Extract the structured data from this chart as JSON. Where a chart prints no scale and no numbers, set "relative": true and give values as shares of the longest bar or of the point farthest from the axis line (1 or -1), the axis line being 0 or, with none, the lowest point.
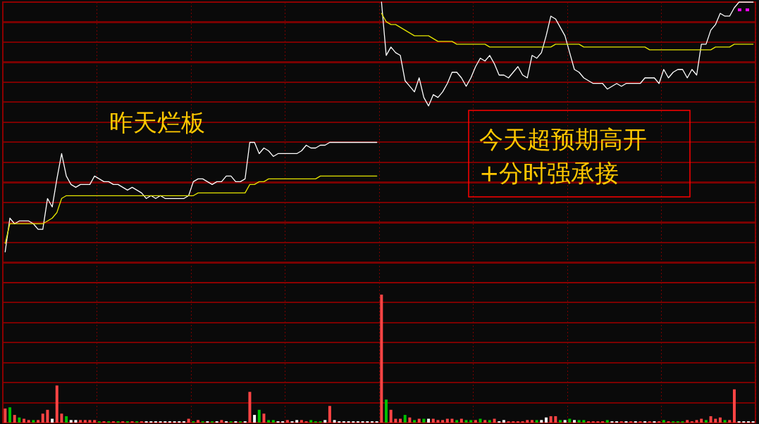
{
  "chart_data": [
    {
      "type": "line",
      "relative": true,
      "grid": true,
      "tick_labels": false,
      "categories": [
        null,
        null,
        null,
        null,
        null,
        null,
        null,
        null,
        null,
        null,
        null,
        null,
        null,
        null,
        null,
        null,
        null,
        null,
        null,
        null,
        null,
        null,
        null,
        null,
        null,
        null,
        null,
        null,
        null,
        null,
        null,
        null,
        null,
        null,
        null,
        null,
        null,
        null,
        null,
        null,
        null,
        null,
        null,
        null,
        null,
        null,
        null,
        null,
        null,
        null,
        null,
        null,
        null,
        null,
        null,
        null,
        null,
        null,
        null,
        null,
        null,
        null,
        null,
        null,
        null,
        null,
        null,
        null,
        null,
        null,
        null,
        null,
        null,
        null,
        null,
        null,
        null,
        null,
        null,
        null,
        null,
        null,
        null,
        null,
        null,
        null,
        null,
        null,
        null,
        null,
        null,
        null,
        null,
        null,
        null,
        null,
        null,
        null,
        null,
        null,
        null,
        null,
        null,
        null,
        null,
        null,
        null,
        null,
        null,
        null,
        null,
        null,
        null,
        null,
        null,
        null,
        null,
        null,
        null,
        null,
        null,
        null,
        null,
        null,
        null,
        null,
        null,
        null,
        null,
        null,
        null,
        null,
        null,
        null,
        null,
        null,
        null,
        null,
        null,
        null,
        null,
        null,
        null,
        null,
        null,
        null,
        null,
        null,
        null,
        null,
        null,
        null,
        null,
        null,
        null,
        null,
        null,
        null,
        null,
        null
      ],
      "series": [
        {
          "color": "#ffffff",
          "values": [
            0.11,
            0.23,
            0.21,
            0.22,
            0.22,
            0.22,
            0.21,
            0.19,
            0.19,
            0.3,
            0.27,
            0.37,
            0.46,
            0.38,
            0.35,
            0.34,
            0.35,
            0.35,
            0.35,
            0.38,
            0.37,
            0.36,
            0.36,
            0.35,
            0.35,
            0.34,
            0.33,
            0.34,
            0.33,
            0.32,
            0.3,
            0.31,
            0.3,
            0.31,
            0.3,
            0.3,
            0.3,
            0.3,
            0.3,
            0.31,
            0.36,
            0.37,
            0.37,
            0.36,
            0.35,
            0.36,
            0.36,
            0.38,
            0.38,
            0.36,
            0.36,
            0.37,
            0.5,
            0.5,
            0.46,
            0.48,
            0.47,
            0.45,
            0.46,
            0.46,
            0.46,
            0.46,
            0.46,
            0.47,
            0.49,
            0.48,
            0.48,
            0.49,
            0.49,
            0.5,
            0.5,
            0.5,
            0.5,
            0.5,
            0.5,
            0.5,
            0.5,
            0.5,
            0.5,
            0.5,
            null,
            null,
            null,
            null,
            null,
            null,
            null,
            null,
            null,
            null,
            null,
            null,
            null,
            null,
            null,
            null,
            null,
            null,
            null,
            null,
            null,
            null,
            null,
            null,
            null,
            null,
            null,
            null,
            null,
            null,
            null,
            null,
            null,
            null,
            null,
            null,
            null,
            null,
            null,
            null,
            null,
            null,
            null,
            null,
            null,
            null,
            null,
            null,
            null,
            null,
            null,
            null,
            null,
            null,
            null,
            null,
            null,
            null,
            null,
            null,
            null,
            null,
            null,
            null,
            null,
            null,
            null,
            null,
            null,
            null,
            null,
            null,
            null,
            null,
            null,
            null,
            null,
            null,
            null,
            null
          ]
        },
        {
          "color": "#ffffff",
          "values": [
            null,
            null,
            null,
            null,
            null,
            null,
            null,
            null,
            null,
            null,
            null,
            null,
            null,
            null,
            null,
            null,
            null,
            null,
            null,
            null,
            null,
            null,
            null,
            null,
            null,
            null,
            null,
            null,
            null,
            null,
            null,
            null,
            null,
            null,
            null,
            null,
            null,
            null,
            null,
            null,
            null,
            null,
            null,
            null,
            null,
            null,
            null,
            null,
            null,
            null,
            null,
            null,
            null,
            null,
            null,
            null,
            null,
            null,
            null,
            null,
            null,
            null,
            null,
            null,
            null,
            null,
            null,
            null,
            null,
            null,
            null,
            null,
            null,
            null,
            null,
            null,
            null,
            null,
            null,
            null,
            1,
            0.81,
            0.84,
            0.82,
            0.81,
            0.72,
            0.7,
            0.68,
            0.73,
            0.66,
            0.63,
            0.67,
            0.66,
            0.68,
            0.71,
            0.75,
            0.75,
            0.73,
            0.7,
            0.73,
            0.77,
            0.8,
            0.79,
            0.81,
            0.78,
            0.74,
            0.74,
            0.73,
            0.75,
            0.77,
            0.74,
            0.73,
            0.81,
            0.8,
            0.82,
            0.88,
            0.95,
            0.94,
            0.91,
            0.88,
            0.82,
            0.76,
            0.75,
            0.73,
            0.72,
            0.71,
            0.71,
            0.71,
            0.69,
            0.7,
            0.71,
            0.7,
            0.71,
            0.71,
            0.71,
            0.71,
            0.73,
            0.73,
            0.73,
            0.71,
            0.76,
            0.73,
            0.75,
            0.76,
            0.76,
            0.73,
            0.76,
            0.74,
            0.85,
            0.85,
            0.9,
            0.92,
            0.96,
            0.95,
            0.95,
            0.98,
            1,
            1,
            1,
            1
          ]
        },
        {
          "color": "#e6e600",
          "values": [
            0.14,
            0.21,
            0.21,
            0.21,
            0.21,
            0.21,
            0.21,
            0.21,
            0.21,
            0.22,
            0.23,
            0.25,
            0.3,
            0.31,
            0.31,
            0.31,
            0.31,
            0.31,
            0.31,
            0.31,
            0.31,
            0.31,
            0.31,
            0.31,
            0.31,
            0.31,
            0.31,
            0.31,
            0.31,
            0.31,
            0.31,
            0.31,
            0.31,
            0.31,
            0.31,
            0.31,
            0.31,
            0.31,
            0.31,
            0.31,
            0.31,
            0.32,
            0.32,
            0.32,
            0.32,
            0.32,
            0.32,
            0.32,
            0.32,
            0.32,
            0.32,
            0.32,
            0.35,
            0.35,
            0.36,
            0.36,
            0.37,
            0.37,
            0.37,
            0.37,
            0.37,
            0.37,
            0.37,
            0.37,
            0.37,
            0.37,
            0.37,
            0.38,
            0.38,
            0.38,
            0.38,
            0.38,
            0.38,
            0.38,
            0.38,
            0.38,
            0.38,
            0.38,
            0.38,
            0.38,
            null,
            null,
            null,
            null,
            null,
            null,
            null,
            null,
            null,
            null,
            null,
            null,
            null,
            null,
            null,
            null,
            null,
            null,
            null,
            null,
            null,
            null,
            null,
            null,
            null,
            null,
            null,
            null,
            null,
            null,
            null,
            null,
            null,
            null,
            null,
            null,
            null,
            null,
            null,
            null,
            null,
            null,
            null,
            null,
            null,
            null,
            null,
            null,
            null,
            null,
            null,
            null,
            null,
            null,
            null,
            null,
            null,
            null,
            null,
            null,
            null,
            null,
            null,
            null,
            null,
            null,
            null,
            null,
            null,
            null,
            null,
            null,
            null,
            null,
            null,
            null,
            null,
            null,
            null,
            null
          ]
        },
        {
          "color": "#e6e600",
          "values": [
            null,
            null,
            null,
            null,
            null,
            null,
            null,
            null,
            null,
            null,
            null,
            null,
            null,
            null,
            null,
            null,
            null,
            null,
            null,
            null,
            null,
            null,
            null,
            null,
            null,
            null,
            null,
            null,
            null,
            null,
            null,
            null,
            null,
            null,
            null,
            null,
            null,
            null,
            null,
            null,
            null,
            null,
            null,
            null,
            null,
            null,
            null,
            null,
            null,
            null,
            null,
            null,
            null,
            null,
            null,
            null,
            null,
            null,
            null,
            null,
            null,
            null,
            null,
            null,
            null,
            null,
            null,
            null,
            null,
            null,
            null,
            null,
            null,
            null,
            null,
            null,
            null,
            null,
            null,
            null,
            0.96,
            0.93,
            0.92,
            0.92,
            0.91,
            0.9,
            0.89,
            0.88,
            0.88,
            0.88,
            0.88,
            0.87,
            0.86,
            0.86,
            0.86,
            0.86,
            0.85,
            0.85,
            0.85,
            0.85,
            0.85,
            0.85,
            0.85,
            0.84,
            0.84,
            0.84,
            0.84,
            0.84,
            0.84,
            0.84,
            0.84,
            0.84,
            0.84,
            0.84,
            0.84,
            0.84,
            0.84,
            0.85,
            0.85,
            0.85,
            0.85,
            0.85,
            0.85,
            0.84,
            0.84,
            0.84,
            0.84,
            0.84,
            0.84,
            0.84,
            0.84,
            0.84,
            0.84,
            0.84,
            0.84,
            0.84,
            0.84,
            0.83,
            0.83,
            0.83,
            0.83,
            0.83,
            0.83,
            0.83,
            0.83,
            0.83,
            0.83,
            0.83,
            0.83,
            0.83,
            0.83,
            0.84,
            0.84,
            0.84,
            0.84,
            0.85,
            0.85,
            0.85,
            0.85,
            0.85
          ]
        }
      ],
      "annotations": [
        "昨天烂板",
        "今天超预期高开\n+分时强承接"
      ]
    },
    {
      "type": "bar",
      "relative": true,
      "grid": true,
      "tick_labels": false,
      "categories": [
        null,
        null,
        null,
        null,
        null,
        null,
        null,
        null,
        null,
        null,
        null,
        null,
        null,
        null,
        null,
        null,
        null,
        null,
        null,
        null,
        null,
        null,
        null,
        null,
        null,
        null,
        null,
        null,
        null,
        null,
        null,
        null,
        null,
        null,
        null,
        null,
        null,
        null,
        null,
        null,
        null,
        null,
        null,
        null,
        null,
        null,
        null,
        null,
        null,
        null,
        null,
        null,
        null,
        null,
        null,
        null,
        null,
        null,
        null,
        null,
        null,
        null,
        null,
        null,
        null,
        null,
        null,
        null,
        null,
        null,
        null,
        null,
        null,
        null,
        null,
        null,
        null,
        null,
        null,
        null,
        null,
        null,
        null,
        null,
        null,
        null,
        null,
        null,
        null,
        null,
        null,
        null,
        null,
        null,
        null,
        null,
        null,
        null,
        null,
        null,
        null,
        null,
        null,
        null,
        null,
        null,
        null,
        null,
        null,
        null,
        null,
        null,
        null,
        null,
        null,
        null,
        null,
        null,
        null,
        null,
        null,
        null,
        null,
        null,
        null,
        null,
        null,
        null,
        null,
        null,
        null,
        null,
        null,
        null,
        null,
        null,
        null,
        null,
        null,
        null,
        null,
        null,
        null,
        null,
        null,
        null,
        null,
        null,
        null,
        null,
        null,
        null,
        null,
        null,
        null,
        null,
        null,
        null,
        null,
        null
      ],
      "values": [
        0.11,
        0.12,
        0.06,
        0.04,
        0.03,
        0.02,
        0.02,
        0.02,
        0.07,
        0.1,
        0.03,
        0.29,
        0.07,
        0.05,
        0.02,
        0.02,
        0.02,
        0.02,
        0.02,
        0.02,
        0.01,
        0.01,
        0.01,
        0.01,
        0.01,
        0.01,
        0.01,
        0.01,
        0.01,
        0.01,
        0.01,
        0.01,
        0.01,
        0.01,
        0.01,
        0.01,
        0.01,
        0.01,
        0.01,
        0.03,
        0.01,
        0.02,
        0.01,
        0.01,
        0.01,
        0.01,
        0.02,
        0.01,
        0.01,
        0.01,
        0.01,
        0.01,
        0.24,
        0.06,
        0.1,
        0.07,
        0.02,
        0.02,
        0.01,
        0.01,
        0.02,
        0.01,
        0.02,
        0.02,
        0.01,
        0.02,
        0.01,
        0.01,
        0.02,
        0.13,
        0.02,
        0.01,
        0.01,
        0.01,
        0.01,
        0.01,
        0.01,
        0.01,
        0.01,
        0.01,
        1,
        0.18,
        0.1,
        0.03,
        0.03,
        0.06,
        0.04,
        0.02,
        0.03,
        0.03,
        0.03,
        0.03,
        0.02,
        0.02,
        0.03,
        0.03,
        0.02,
        0.03,
        0.02,
        0.02,
        0.02,
        0.03,
        0.02,
        0.02,
        0.03,
        0.01,
        0.02,
        0.01,
        0.01,
        0.01,
        0.01,
        0.02,
        0.02,
        0.02,
        0.02,
        0.04,
        0.05,
        0.05,
        0.02,
        0.02,
        0.03,
        0.02,
        0.02,
        0.02,
        0.01,
        0.01,
        0.01,
        0.01,
        0.02,
        0.01,
        0.01,
        0.01,
        0.01,
        0.01,
        0.01,
        0.01,
        0.01,
        0.01,
        0.01,
        0.01,
        0.02,
        0.01,
        0.01,
        0.01,
        0.01,
        0.02,
        0.01,
        0.02,
        0.03,
        0.02,
        0.05,
        0.03,
        0.04,
        0.02,
        0.02,
        0.26,
        0.01,
        0.01,
        0.01,
        0.01
      ],
      "colors": [
        "#ff4444",
        "#00c000",
        "#ff4444",
        "#00c000",
        "#ff4444",
        "#ff4444",
        "#00c000",
        "#ff4444",
        "#ff4444",
        "#ff4444",
        "#ffffff",
        "#ff4444",
        "#ff4444",
        "#00c000",
        "#ffffff",
        "#ffffff",
        "#ff4444",
        "#ff4444",
        "#ff4444",
        "#ff4444",
        "#00c000",
        "#ff4444",
        "#00c000",
        "#ff4444",
        "#00c000",
        "#ff4444",
        "#00c000",
        "#ff4444",
        "#00c000",
        "#ff4444",
        "#ffffff",
        "#ffffff",
        "#ffffff",
        "#ffffff",
        "#ffffff",
        "#ffffff",
        "#ffffff",
        "#ffffff",
        "#ffffff",
        "#ff4444",
        "#00c000",
        "#ff4444",
        "#00c000",
        "#ffffff",
        "#00c000",
        "#ffffff",
        "#ff4444",
        "#ffffff",
        "#00c000",
        "#ffffff",
        "#00c000",
        "#ffffff",
        "#ff4444",
        "#ffffff",
        "#00c000",
        "#ff4444",
        "#00c000",
        "#00c000",
        "#ffffff",
        "#ffffff",
        "#ff4444",
        "#ffffff",
        "#ffffff",
        "#ff4444",
        "#ff4444",
        "#00c000",
        "#00c000",
        "#00c000",
        "#ffffff",
        "#ff4444",
        "#ffffff",
        "#ffffff",
        "#ffffff",
        "#ffffff",
        "#ffffff",
        "#ffffff",
        "#ffffff",
        "#ffffff",
        "#ffffff",
        "#ffffff",
        "#ff4444",
        "#00c000",
        "#ff4444",
        "#ff4444",
        "#ff4444",
        "#00c000",
        "#ff4444",
        "#00c000",
        "#ff4444",
        "#00c000",
        "#ffffff",
        "#ff4444",
        "#ff4444",
        "#ff4444",
        "#ff4444",
        "#ff4444",
        "#00c000",
        "#ff4444",
        "#00c000",
        "#00c000",
        "#ff4444",
        "#00c000",
        "#ff4444",
        "#00c000",
        "#ff4444",
        "#ffffff",
        "#ffffff",
        "#ff4444",
        "#ff4444",
        "#ff4444",
        "#ff4444",
        "#ff4444",
        "#ff4444",
        "#00c000",
        "#ffffff",
        "#ffffff",
        "#ff4444",
        "#ff4444",
        "#00c000",
        "#ffffff",
        "#00c000",
        "#ffffff",
        "#00c000",
        "#00c000",
        "#ff4444",
        "#ff4444",
        "#ff4444",
        "#ff4444",
        "#00c000",
        "#ffffff",
        "#ffffff",
        "#ff4444",
        "#ffffff",
        "#ff4444",
        "#ffffff",
        "#ff4444",
        "#ffffff",
        "#ff4444",
        "#ffffff",
        "#ff4444",
        "#00c000",
        "#ff4444",
        "#00c000",
        "#00c000",
        "#00c000",
        "#ff4444",
        "#ff4444",
        "#ff4444",
        "#ff4444",
        "#00c000",
        "#ff4444",
        "#ff4444",
        "#ff4444",
        "#00c000",
        "#ff4444",
        "#ff4444",
        "#ffffff",
        "#ffffff",
        "#ffffff",
        "#ffffff"
      ]
    }
  ]
}
